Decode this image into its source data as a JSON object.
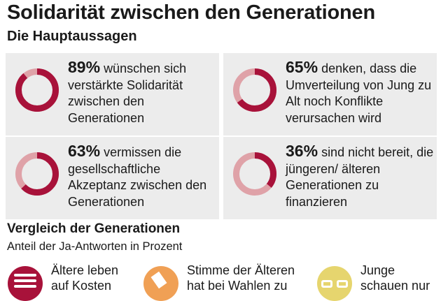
{
  "title": "Solidarität zwischen den Generationen",
  "subtitle": "Die Hauptaussagen",
  "colors": {
    "dark": "#a8123a",
    "light": "#dfa2a8",
    "card": "#ececec",
    "orange": "#f0a055",
    "yellow": "#e6d56e"
  },
  "chart_data": {
    "type": "pie",
    "title": "Die Hauptaussagen",
    "items": [
      {
        "value": 89,
        "pct_label": "89%",
        "text": "wünschen sich verstärkte Solidarität zwischen den Generationen"
      },
      {
        "value": 65,
        "pct_label": "65%",
        "text": "denken, dass die Umverteilung von Jung zu Alt noch Konflikte verursachen wird"
      },
      {
        "value": 63,
        "pct_label": "63%",
        "text": "vermissen die gesellschaftliche Akzeptanz zwischen den Generationen"
      },
      {
        "value": 36,
        "pct_label": "36%",
        "text": "sind nicht bereit, die jüngeren/ älteren Generationen zu finanzieren"
      }
    ]
  },
  "comparison": {
    "title": "Vergleich der Generationen",
    "subtitle": "Anteil der Ja-Antworten in Prozent",
    "items": [
      {
        "line1": "Ältere leben",
        "line2": "auf Kosten",
        "icon": "elderly-icon"
      },
      {
        "line1": "Stimme der Älteren",
        "line2": "hat bei Wahlen zu",
        "icon": "ballot-icon"
      },
      {
        "line1": "Junge",
        "line2": "schauen nur",
        "icon": "youth-icon"
      }
    ]
  }
}
